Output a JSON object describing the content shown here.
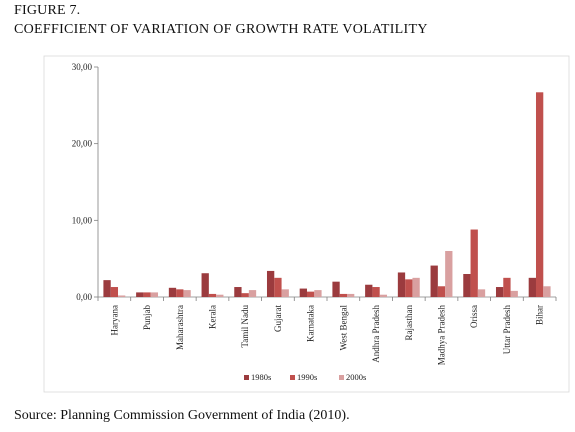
{
  "figure_label": "FIGURE 7.",
  "figure_title": "COEFFICIENT OF VARIATION OF GROWTH RATE VOLATILITY",
  "source": "Source: Planning Commission Government of India (2010).",
  "chart_data": {
    "type": "bar",
    "categories": [
      "Haryana",
      "Punjab",
      "Maharashtra",
      "Kerala",
      "Tamil Nadu",
      "Gujarat",
      "Karnataka",
      "West Bengal",
      "Andhra Pradesh",
      "Rajasthan",
      "Madhya Pradesh",
      "Orissa",
      "Uttar Pradesh",
      "Bihar"
    ],
    "series": [
      {
        "name": "1980s",
        "color": "#9b3b3e",
        "values": [
          2.2,
          0.6,
          1.2,
          3.1,
          1.3,
          3.4,
          1.1,
          2.0,
          1.6,
          3.2,
          4.1,
          3.0,
          1.3,
          2.5
        ]
      },
      {
        "name": "1990s",
        "color": "#c0504d",
        "values": [
          1.3,
          0.6,
          1.0,
          0.4,
          0.5,
          2.5,
          0.7,
          0.4,
          1.3,
          2.3,
          1.4,
          8.8,
          2.5,
          26.7
        ]
      },
      {
        "name": "2000s",
        "color": "#d9a0a0",
        "values": [
          0.2,
          0.6,
          0.9,
          0.3,
          0.9,
          1.0,
          0.9,
          0.4,
          0.3,
          2.5,
          6.0,
          1.0,
          0.8,
          1.4
        ]
      }
    ],
    "ylim": [
      0,
      30
    ],
    "yticks": [
      "0,00",
      "10,00",
      "20,00",
      "30,00"
    ],
    "ytick_values": [
      0,
      10,
      20,
      30
    ],
    "grid": false,
    "legend_position": "bottom"
  }
}
